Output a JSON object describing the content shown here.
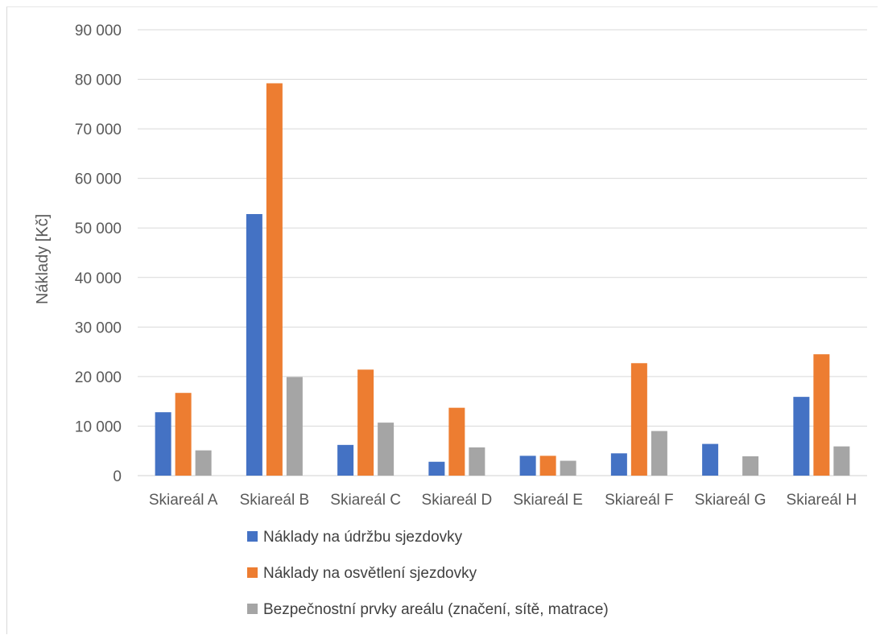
{
  "chart_data": {
    "type": "bar",
    "title": "",
    "xlabel": "",
    "ylabel": "Náklady [Kč]",
    "ylim": [
      0,
      90000
    ],
    "yticks": [
      0,
      10000,
      20000,
      30000,
      40000,
      50000,
      60000,
      70000,
      80000,
      90000
    ],
    "ytick_labels": [
      "0",
      "10 000",
      "20 000",
      "30 000",
      "40 000",
      "50 000",
      "60 000",
      "70 000",
      "80 000",
      "90 000"
    ],
    "grid": true,
    "legend_position": "bottom",
    "categories": [
      "Skiareál A",
      "Skiareál B",
      "Skiareál C",
      "Skiareál D",
      "Skiareál E",
      "Skiareál F",
      "Skiareál G",
      "Skiareál H"
    ],
    "series": [
      {
        "name": "Náklady na údržbu sjezdovky",
        "color": "#4472c4",
        "values": [
          12800,
          52800,
          6200,
          2800,
          4000,
          4500,
          6400,
          15900
        ]
      },
      {
        "name": "Náklady na osvětlení sjezdovky",
        "color": "#ed7d31",
        "values": [
          16700,
          79200,
          21400,
          13700,
          4000,
          22700,
          0,
          24500
        ]
      },
      {
        "name": "Bezpečnostní prvky areálu (značení, sítě, matrace)",
        "color": "#a5a5a5",
        "values": [
          5100,
          19900,
          10700,
          5700,
          3000,
          9000,
          3900,
          5900
        ]
      }
    ]
  }
}
